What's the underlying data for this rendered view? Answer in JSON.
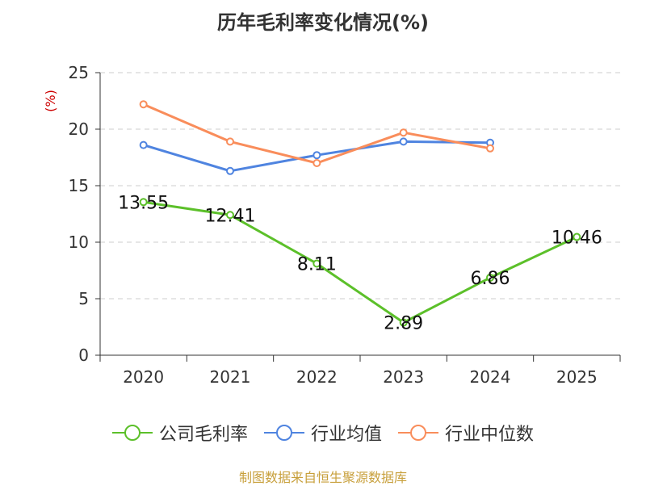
{
  "chart_data": {
    "type": "line",
    "title": "历年毛利率变化情况(%)",
    "ylabel": "(%)",
    "categories": [
      "2020",
      "2021",
      "2022",
      "2023",
      "2024",
      "2025"
    ],
    "ylim": [
      0,
      25
    ],
    "yticks": [
      0,
      5,
      10,
      15,
      20,
      25
    ],
    "grid": true,
    "legend_position": "bottom",
    "series": [
      {
        "name": "公司毛利率",
        "color": "#5cc02a",
        "values": [
          13.55,
          12.41,
          8.11,
          2.89,
          6.86,
          10.46
        ],
        "labels": [
          "13.55",
          "12.41",
          "8.11",
          "2.89",
          "6.86",
          "10.46"
        ]
      },
      {
        "name": "行业均值",
        "color": "#4f84e0",
        "values": [
          18.6,
          16.3,
          17.7,
          18.9,
          18.8,
          null
        ]
      },
      {
        "name": "行业中位数",
        "color": "#f98d5b",
        "values": [
          22.2,
          18.9,
          17.0,
          19.7,
          18.3,
          null
        ]
      }
    ]
  },
  "source": "制图数据来自恒生聚源数据库"
}
